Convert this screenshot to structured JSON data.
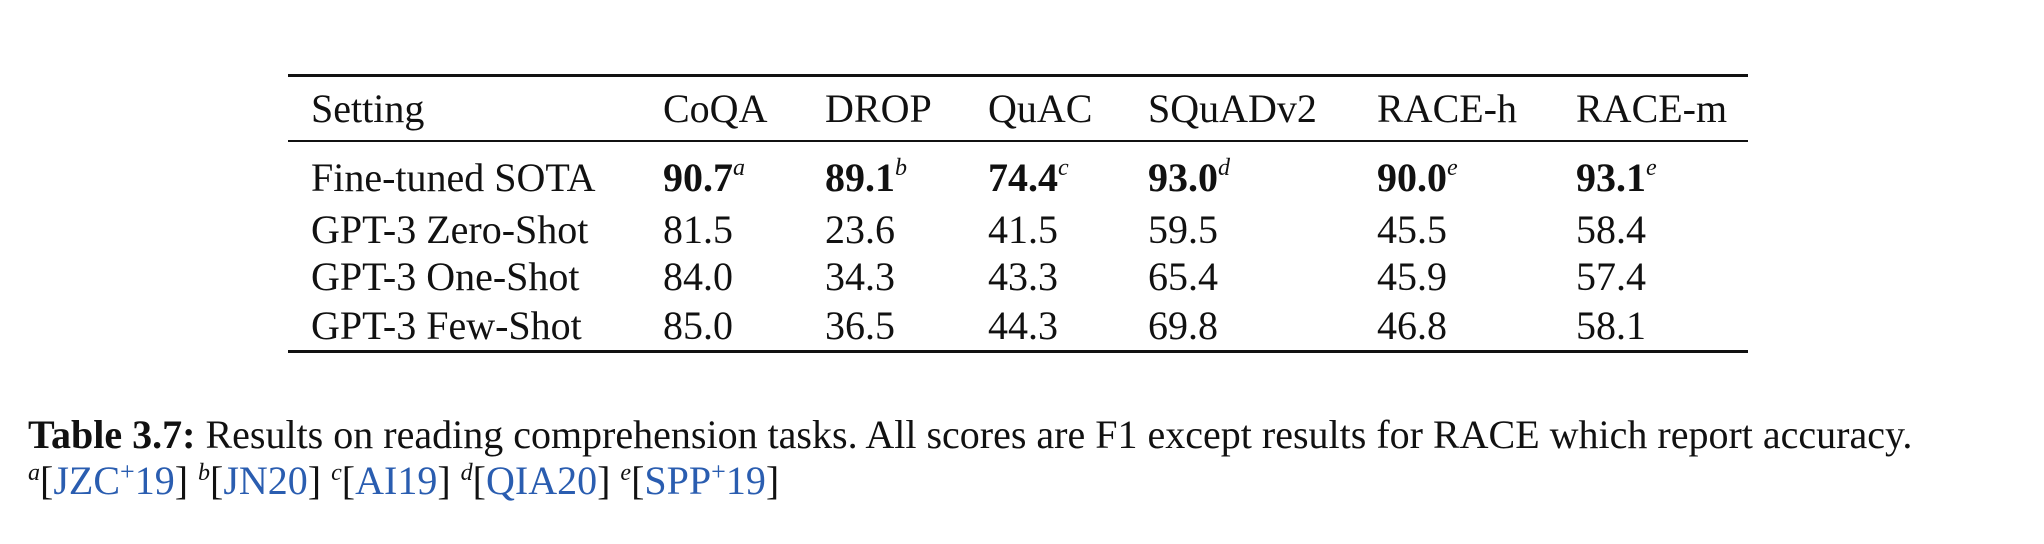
{
  "table": {
    "headers": [
      "Setting",
      "CoQA",
      "DROP",
      "QuAC",
      "SQuADv2",
      "RACE-h",
      "RACE-m"
    ],
    "sota": {
      "setting": "Fine-tuned SOTA",
      "values": [
        "90.7",
        "89.1",
        "74.4",
        "93.0",
        "90.0",
        "93.1"
      ],
      "refs": [
        "a",
        "b",
        "c",
        "d",
        "e",
        "e"
      ]
    },
    "rows": [
      {
        "setting": "GPT-3 Zero-Shot",
        "values": [
          "81.5",
          "23.6",
          "41.5",
          "59.5",
          "45.5",
          "58.4"
        ]
      },
      {
        "setting": "GPT-3 One-Shot",
        "values": [
          "84.0",
          "34.3",
          "43.3",
          "65.4",
          "45.9",
          "57.4"
        ]
      },
      {
        "setting": "GPT-3 Few-Shot",
        "values": [
          "85.0",
          "36.5",
          "44.3",
          "69.8",
          "46.8",
          "58.1"
        ]
      }
    ]
  },
  "caption": {
    "label": "Table 3.7:",
    "text": "Results on reading comprehension tasks. All scores are F1 except results for RACE which report accuracy.",
    "citations": [
      {
        "mark": "a",
        "pre": "[",
        "ref": "JZC",
        "plus": "+",
        "year": "19",
        "post": "]"
      },
      {
        "mark": "b",
        "pre": "[",
        "ref": "JN20",
        "plus": "",
        "year": "",
        "post": "]"
      },
      {
        "mark": "c",
        "pre": "[",
        "ref": "AI19",
        "plus": "",
        "year": "",
        "post": "]"
      },
      {
        "mark": "d",
        "pre": "[",
        "ref": "QIA20",
        "plus": "",
        "year": "",
        "post": "]"
      },
      {
        "mark": "e",
        "pre": "[",
        "ref": "SPP",
        "plus": "+",
        "year": "19",
        "post": "]"
      }
    ]
  },
  "colors": {
    "text": "#111111",
    "citation": "#2a5db0"
  }
}
